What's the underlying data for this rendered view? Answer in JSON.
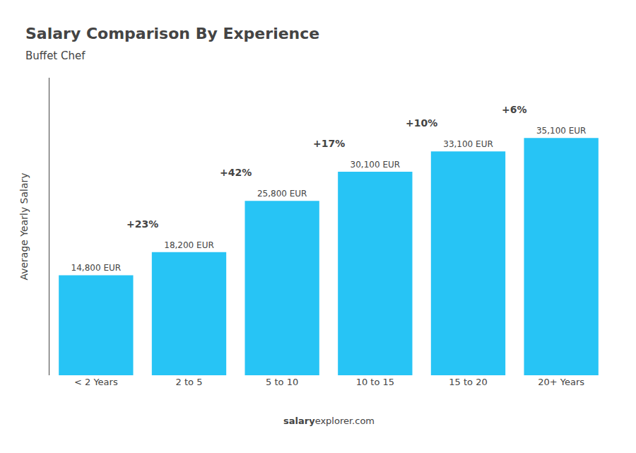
{
  "chart_data": {
    "type": "bar",
    "title": "Salary Comparison By Experience",
    "subtitle": "Buffet Chef",
    "categories": [
      "< 2 Years",
      "2 to 5",
      "5 to 10",
      "10 to 15",
      "15 to 20",
      "20+ Years"
    ],
    "values": [
      14800,
      18200,
      25800,
      30100,
      33100,
      35100
    ],
    "value_labels": [
      "14,800 EUR",
      "18,200 EUR",
      "25,800 EUR",
      "30,100 EUR",
      "33,100 EUR",
      "35,100 EUR"
    ],
    "data_labels": true,
    "annotations": [
      "+23%",
      "+42%",
      "+17%",
      "+10%",
      "+6%"
    ],
    "ylabel": "Average Yearly Salary",
    "footer": [
      "salary",
      "explorer.com"
    ],
    "color": "#27c4f5",
    "ylim": [
      0,
      44000
    ],
    "grid": false,
    "tick_labels": "x"
  }
}
